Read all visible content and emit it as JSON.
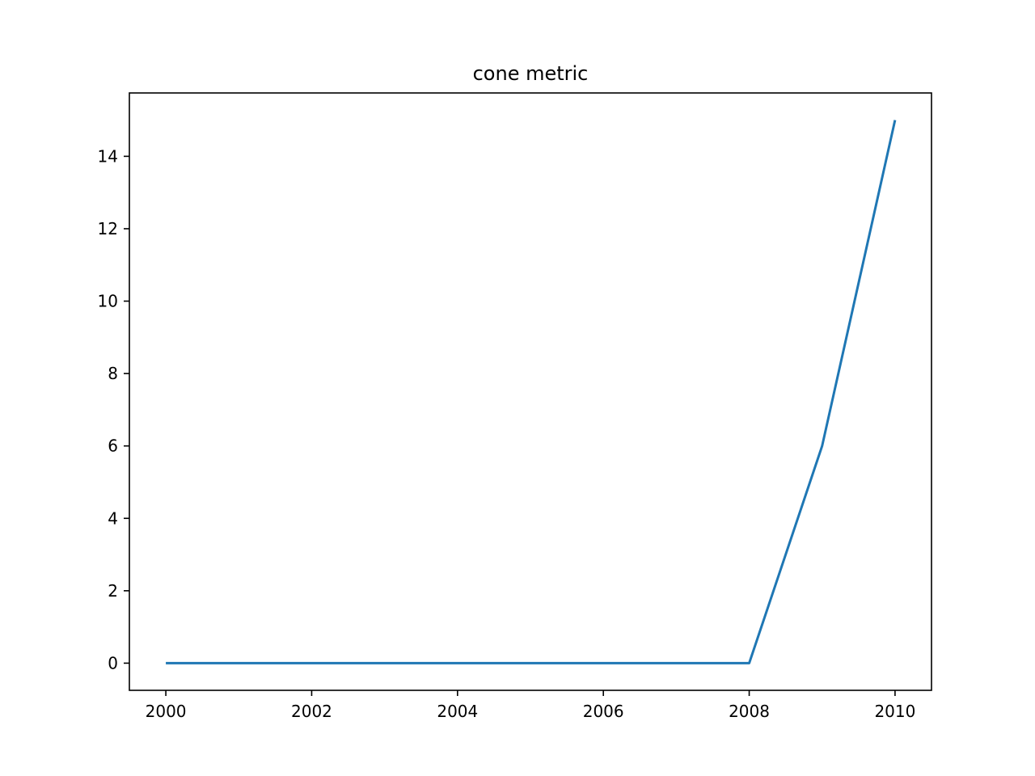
{
  "chart_data": {
    "type": "line",
    "title": "cone metric",
    "xlabel": "",
    "ylabel": "",
    "x": [
      2000,
      2001,
      2002,
      2003,
      2004,
      2005,
      2006,
      2007,
      2008,
      2009,
      2010
    ],
    "series": [
      {
        "values": [
          0,
          0,
          0,
          0,
          0,
          0,
          0,
          0,
          0,
          6,
          15
        ],
        "color": "#1f77b4"
      }
    ],
    "xlim": [
      1999.5,
      2010.5
    ],
    "ylim": [
      -0.75,
      15.75
    ],
    "x_ticks": [
      2000,
      2002,
      2004,
      2006,
      2008,
      2010
    ],
    "x_tick_labels": [
      "2000",
      "2002",
      "2004",
      "2006",
      "2008",
      "2010"
    ],
    "y_ticks": [
      0,
      2,
      4,
      6,
      8,
      10,
      12,
      14
    ],
    "y_tick_labels": [
      "0",
      "2",
      "4",
      "6",
      "8",
      "10",
      "12",
      "14"
    ],
    "grid": false,
    "legend": "none"
  }
}
